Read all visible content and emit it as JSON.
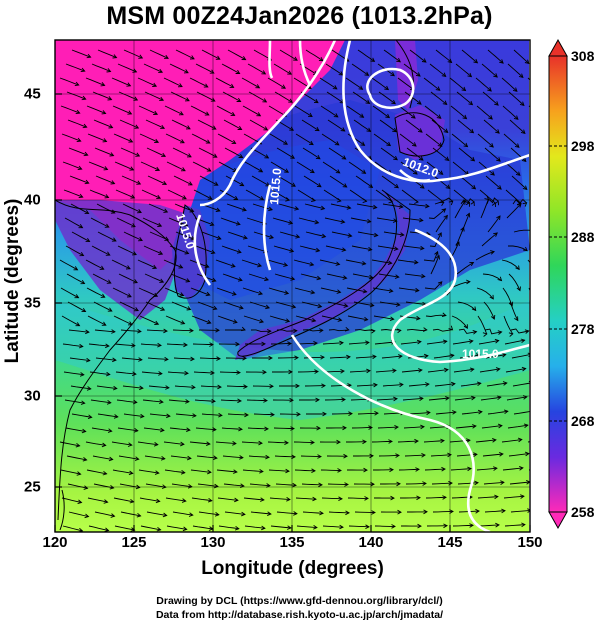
{
  "title": "MSM 00Z24Jan2026 (1013.2hPa)",
  "x_axis": {
    "label": "Longitude (degrees)",
    "ticks": [
      "120",
      "125",
      "130",
      "135",
      "140",
      "145",
      "150"
    ],
    "range": [
      120,
      150
    ]
  },
  "y_axis": {
    "label": "Latitude  (degrees)",
    "ticks": [
      "25",
      "30",
      "35",
      "40",
      "45"
    ],
    "range": [
      22.5,
      47.6
    ]
  },
  "colorbar": {
    "labels": [
      "308",
      "298",
      "288",
      "278",
      "268",
      "258"
    ],
    "range": [
      258,
      308
    ]
  },
  "contours": {
    "labels": [
      "1015.0",
      "1015.0",
      "1015.0",
      "1012.0",
      "1015.0"
    ],
    "color": "#ffffff"
  },
  "credits": {
    "line1": "Drawing by DCL (https://www.gfd-dennou.org/library/dcl/)",
    "line2": "Data from http://database.rish.kyoto-u.ac.jp/arch/jmadata/"
  }
}
